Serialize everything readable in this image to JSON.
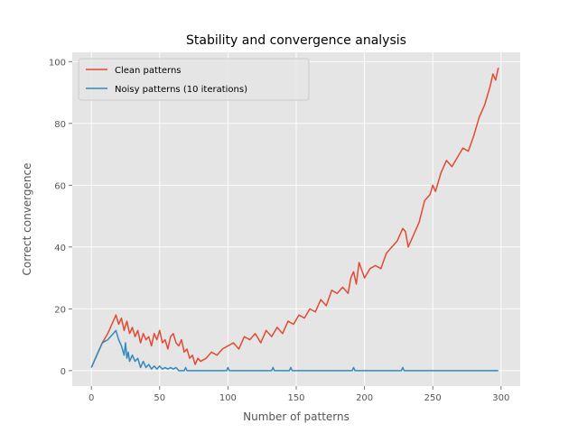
{
  "chart_data": {
    "type": "line",
    "title": "Stability and convergence analysis",
    "xlabel": "Number of patterns",
    "ylabel": "Correct convergence",
    "xlim": [
      -14,
      314
    ],
    "ylim": [
      -5,
      103
    ],
    "xticks": [
      0,
      50,
      100,
      150,
      200,
      250,
      300
    ],
    "yticks": [
      0,
      20,
      40,
      60,
      80,
      100
    ],
    "grid": true,
    "legend_position": "top-left",
    "background": "#e5e5e5",
    "series": [
      {
        "name": "Clean patterns",
        "color": "#e24a33",
        "x": [
          0,
          4,
          8,
          12,
          16,
          18,
          20,
          22,
          24,
          26,
          28,
          30,
          32,
          34,
          36,
          38,
          40,
          42,
          44,
          46,
          48,
          50,
          52,
          54,
          56,
          58,
          60,
          62,
          64,
          66,
          68,
          70,
          72,
          74,
          76,
          78,
          80,
          84,
          88,
          92,
          96,
          100,
          104,
          108,
          112,
          116,
          120,
          124,
          128,
          132,
          136,
          140,
          144,
          148,
          152,
          156,
          160,
          164,
          168,
          172,
          176,
          180,
          184,
          188,
          190,
          192,
          194,
          196,
          200,
          204,
          208,
          212,
          216,
          220,
          224,
          228,
          230,
          232,
          236,
          240,
          244,
          248,
          250,
          252,
          256,
          260,
          264,
          268,
          272,
          276,
          280,
          284,
          288,
          292,
          294,
          296,
          298
        ],
        "y": [
          1,
          5,
          9,
          12,
          16,
          18,
          15,
          17,
          13,
          16,
          12,
          14,
          11,
          13,
          9,
          12,
          10,
          11,
          8,
          12,
          10,
          13,
          9,
          10,
          7,
          11,
          12,
          9,
          8,
          10,
          6,
          7,
          4,
          5,
          2,
          4,
          3,
          4,
          6,
          5,
          7,
          8,
          9,
          7,
          11,
          10,
          12,
          9,
          13,
          11,
          14,
          12,
          16,
          15,
          18,
          17,
          20,
          19,
          23,
          21,
          26,
          25,
          27,
          25,
          30,
          32,
          28,
          35,
          30,
          33,
          34,
          33,
          38,
          40,
          42,
          46,
          45,
          40,
          44,
          48,
          55,
          57,
          60,
          58,
          64,
          68,
          66,
          69,
          72,
          71,
          76,
          82,
          86,
          92,
          96,
          94,
          98
        ]
      },
      {
        "name": "Noisy patterns (10 iterations)",
        "color": "#348abd",
        "x": [
          0,
          4,
          8,
          12,
          16,
          18,
          20,
          22,
          24,
          25,
          26,
          27,
          28,
          30,
          32,
          34,
          36,
          38,
          40,
          42,
          44,
          46,
          48,
          50,
          52,
          54,
          56,
          58,
          60,
          62,
          64,
          66,
          68,
          69,
          70,
          71,
          72,
          80,
          99,
          100,
          101,
          102,
          120,
          132,
          133,
          134,
          145,
          146,
          147,
          150,
          191,
          192,
          193,
          200,
          227,
          228,
          229,
          240,
          270,
          298
        ],
        "y": [
          1,
          5,
          9,
          10,
          12,
          13,
          10,
          8,
          5,
          9,
          4,
          6,
          3,
          5,
          3,
          4,
          1,
          3,
          1,
          2,
          0.5,
          1.5,
          0.5,
          1.5,
          0.5,
          1,
          0.5,
          1,
          0.5,
          1,
          0,
          0,
          0,
          1,
          0,
          0,
          0,
          0,
          0,
          1,
          0,
          0,
          0,
          0,
          1,
          0,
          0,
          1,
          0,
          0,
          0,
          1,
          0,
          0,
          0,
          1,
          0,
          0,
          0,
          0
        ]
      }
    ]
  }
}
